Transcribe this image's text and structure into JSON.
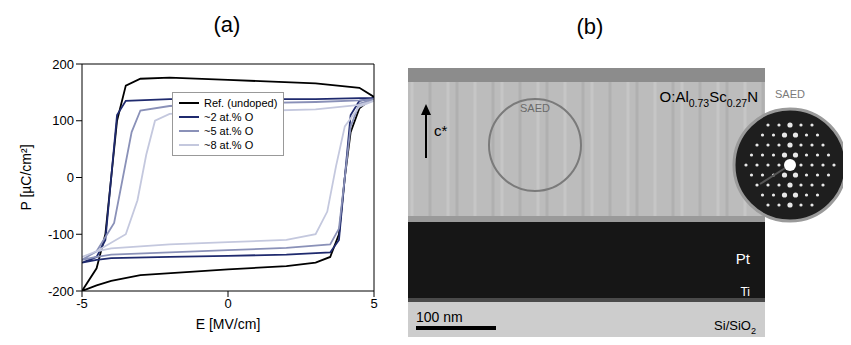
{
  "chart_data": {
    "type": "line",
    "title": "(a)",
    "x_label": "E [MV/cm]",
    "y_label": "P [µC/cm²]",
    "xlim": [
      -5,
      5
    ],
    "xticks": [
      -5,
      0,
      5
    ],
    "ylim": [
      -200,
      200
    ],
    "yticks": [
      -200,
      -100,
      0,
      100,
      200
    ],
    "grid": false,
    "legend": "center",
    "series": [
      {
        "name": "Ref. (undoped)",
        "color": "#000000",
        "x": [
          -5,
          -4.5,
          -4,
          -3,
          0,
          2,
          3,
          3.5,
          3.8,
          4.0,
          4.2,
          4.5,
          5,
          4.5,
          3,
          0,
          -2,
          -3,
          -3.5,
          -3.8,
          -4.0,
          -4.2,
          -4.5,
          -5
        ],
        "values": [
          -200,
          -190,
          -182,
          -172,
          -162,
          -156,
          -150,
          -140,
          -100,
          0,
          80,
          122,
          142,
          158,
          166,
          172,
          176,
          174,
          162,
          100,
          0,
          -100,
          -160,
          -200
        ]
      },
      {
        "name": "~2 at.% O",
        "color": "#1f2a6e",
        "x": [
          -5,
          -4.5,
          -4,
          -2,
          0,
          2,
          3.5,
          3.8,
          4.0,
          4.2,
          4.5,
          5,
          4.5,
          3,
          0,
          -2,
          -3.5,
          -3.8,
          -4.0,
          -4.2,
          -4.5,
          -5
        ],
        "values": [
          -150,
          -145,
          -142,
          -140,
          -138,
          -136,
          -132,
          -110,
          0,
          110,
          135,
          140,
          140,
          138,
          138,
          138,
          135,
          110,
          0,
          -110,
          -140,
          -150
        ]
      },
      {
        "name": "~5 at.% O",
        "color": "#8a91b8",
        "x": [
          -5,
          -4.5,
          -4,
          -2,
          0,
          2,
          3.5,
          3.8,
          4.0,
          4.2,
          4.5,
          5,
          4.5,
          3,
          0,
          -2,
          -3,
          -3.3,
          -3.6,
          -3.9,
          -4.5,
          -5
        ],
        "values": [
          -145,
          -140,
          -136,
          -132,
          -128,
          -124,
          -118,
          -90,
          0,
          90,
          130,
          138,
          136,
          133,
          130,
          126,
          118,
          80,
          0,
          -80,
          -130,
          -145
        ]
      },
      {
        "name": "~8 at.% O",
        "color": "#c4c8de",
        "x": [
          -5,
          -4.5,
          -4,
          -2,
          0,
          2,
          3,
          3.4,
          3.7,
          4.0,
          4.5,
          5,
          4.5,
          3,
          0,
          -2,
          -2.5,
          -2.8,
          -3.1,
          -3.5,
          -4.5,
          -5
        ],
        "values": [
          -140,
          -130,
          -125,
          -118,
          -114,
          -110,
          -100,
          -60,
          20,
          90,
          125,
          135,
          128,
          120,
          116,
          112,
          100,
          40,
          -40,
          -100,
          -130,
          -140
        ]
      }
    ]
  },
  "image": {
    "title": "(b)",
    "film_label": "O:Al0.73Sc0.27N",
    "axis_label": "c*",
    "circle_label": "SAED",
    "layers": [
      "Pt",
      "Ti",
      "Si/SiO2"
    ],
    "scale_bar": "100 nm",
    "inset_label": "SAED"
  }
}
